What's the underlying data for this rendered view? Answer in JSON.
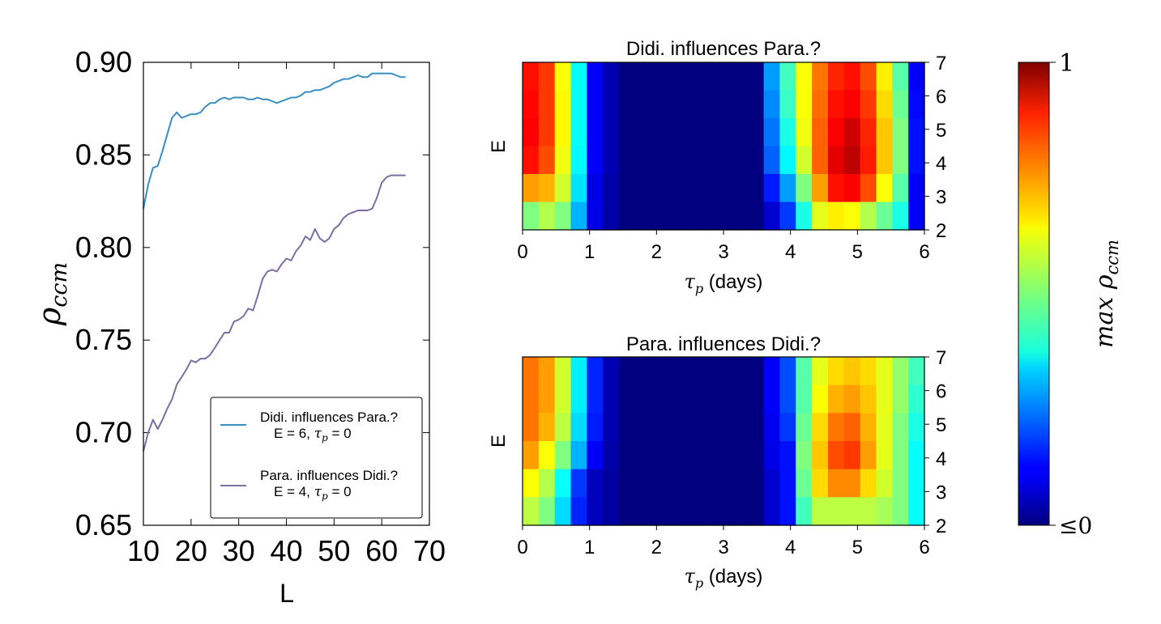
{
  "chart_data": [
    {
      "type": "line",
      "xlabel": "L",
      "ylabel_base": "ρ",
      "ylabel_sub": "ccm",
      "xlim": [
        10,
        70
      ],
      "ylim": [
        0.65,
        0.9
      ],
      "x_ticks": [
        "10",
        "20",
        "30",
        "40",
        "50",
        "60",
        "70"
      ],
      "y_ticks": [
        "0.90",
        "0.85",
        "0.80",
        "0.75",
        "0.70",
        "0.65"
      ],
      "grid": false,
      "legend_position": "lower-right",
      "series": [
        {
          "name": "Didi. influences Para.?",
          "sub_e": "E = 6, ",
          "sub_tau_base": "τ",
          "sub_tau_sub": "p",
          "sub_tau_rest": " = 0",
          "color": "#3b8fbf",
          "x": [
            10,
            11,
            12,
            13,
            14,
            15,
            16,
            17,
            18,
            19,
            20,
            21,
            22,
            23,
            24,
            25,
            26,
            27,
            28,
            29,
            30,
            31,
            32,
            33,
            34,
            35,
            36,
            37,
            38,
            39,
            40,
            41,
            42,
            43,
            44,
            45,
            46,
            47,
            48,
            49,
            50,
            51,
            52,
            53,
            54,
            55,
            56,
            57,
            58,
            59,
            60,
            61,
            62,
            63,
            64,
            65
          ],
          "values": [
            0.821,
            0.834,
            0.843,
            0.844,
            0.852,
            0.861,
            0.87,
            0.873,
            0.87,
            0.871,
            0.872,
            0.872,
            0.873,
            0.876,
            0.878,
            0.878,
            0.88,
            0.881,
            0.88,
            0.881,
            0.881,
            0.881,
            0.88,
            0.88,
            0.881,
            0.88,
            0.88,
            0.879,
            0.878,
            0.879,
            0.88,
            0.881,
            0.881,
            0.882,
            0.884,
            0.884,
            0.885,
            0.885,
            0.886,
            0.887,
            0.889,
            0.89,
            0.891,
            0.891,
            0.892,
            0.893,
            0.892,
            0.892,
            0.894,
            0.894,
            0.894,
            0.894,
            0.894,
            0.893,
            0.892,
            0.892
          ]
        },
        {
          "name": "Para. influences Didi.?",
          "sub_e": "E = 4, ",
          "sub_tau_base": "τ",
          "sub_tau_sub": "p",
          "sub_tau_rest": " = 0",
          "color": "#7b6ea5",
          "x": [
            10,
            11,
            12,
            13,
            14,
            15,
            16,
            17,
            18,
            19,
            20,
            21,
            22,
            23,
            24,
            25,
            26,
            27,
            28,
            29,
            30,
            31,
            32,
            33,
            34,
            35,
            36,
            37,
            38,
            39,
            40,
            41,
            42,
            43,
            44,
            45,
            46,
            47,
            48,
            49,
            50,
            51,
            52,
            53,
            54,
            55,
            56,
            57,
            58,
            59,
            60,
            61,
            62,
            63,
            64,
            65
          ],
          "values": [
            0.69,
            0.7,
            0.707,
            0.702,
            0.707,
            0.713,
            0.718,
            0.726,
            0.73,
            0.734,
            0.739,
            0.738,
            0.74,
            0.74,
            0.742,
            0.746,
            0.75,
            0.754,
            0.754,
            0.76,
            0.761,
            0.763,
            0.767,
            0.766,
            0.774,
            0.783,
            0.787,
            0.788,
            0.787,
            0.791,
            0.794,
            0.793,
            0.798,
            0.801,
            0.806,
            0.804,
            0.81,
            0.805,
            0.803,
            0.805,
            0.81,
            0.812,
            0.816,
            0.818,
            0.819,
            0.82,
            0.82,
            0.82,
            0.821,
            0.827,
            0.835,
            0.838,
            0.839,
            0.839,
            0.839,
            0.839
          ]
        }
      ]
    },
    {
      "type": "heatmap",
      "title": "Didi. influences Para.?",
      "xlabel_base": "τ",
      "xlabel_sub": "p",
      "xlabel_rest": " (days)",
      "ylabel": "E",
      "x_ticks": [
        "0",
        "1",
        "2",
        "3",
        "4",
        "5",
        "6"
      ],
      "y_ticks": [
        "7",
        "6",
        "5",
        "4",
        "3",
        "2"
      ],
      "xlim": [
        0,
        6
      ],
      "ylim": [
        2,
        7
      ],
      "x": [
        0,
        0.25,
        0.5,
        0.75,
        1,
        1.25,
        1.5,
        1.75,
        2,
        2.25,
        2.5,
        2.75,
        3,
        3.25,
        3.5,
        3.75,
        4,
        4.25,
        4.5,
        4.75,
        5,
        5.25,
        5.5,
        5.75,
        6
      ],
      "rows": [
        {
          "E": 7,
          "values": [
            0.86,
            0.82,
            0.62,
            0.38,
            0.12,
            0.05,
            0,
            0,
            0,
            0,
            0,
            0,
            0,
            0,
            0,
            0.28,
            0.44,
            0.62,
            0.76,
            0.84,
            0.86,
            0.8,
            0.64,
            0.46,
            0.12
          ]
        },
        {
          "E": 6,
          "values": [
            0.87,
            0.82,
            0.63,
            0.38,
            0.12,
            0.05,
            0,
            0,
            0,
            0,
            0,
            0,
            0,
            0,
            0,
            0.26,
            0.43,
            0.62,
            0.77,
            0.86,
            0.88,
            0.82,
            0.66,
            0.48,
            0.13
          ]
        },
        {
          "E": 5,
          "values": [
            0.88,
            0.82,
            0.63,
            0.38,
            0.12,
            0.05,
            0,
            0,
            0,
            0,
            0,
            0,
            0,
            0,
            0,
            0.24,
            0.4,
            0.61,
            0.78,
            0.88,
            0.92,
            0.84,
            0.68,
            0.5,
            0.14
          ]
        },
        {
          "E": 4,
          "values": [
            0.86,
            0.8,
            0.61,
            0.37,
            0.12,
            0.05,
            0,
            0,
            0,
            0,
            0,
            0,
            0,
            0,
            0,
            0.22,
            0.37,
            0.58,
            0.78,
            0.9,
            0.94,
            0.85,
            0.68,
            0.5,
            0.14
          ]
        },
        {
          "E": 3,
          "values": [
            0.72,
            0.7,
            0.58,
            0.35,
            0.1,
            0.04,
            0,
            0,
            0,
            0,
            0,
            0,
            0,
            0,
            0,
            0.15,
            0.28,
            0.5,
            0.72,
            0.86,
            0.88,
            0.8,
            0.62,
            0.46,
            0.12
          ]
        },
        {
          "E": 2,
          "values": [
            0.5,
            0.55,
            0.5,
            0.3,
            0.1,
            0.04,
            0,
            0,
            0,
            0,
            0,
            0,
            0,
            0,
            0,
            0.08,
            0.18,
            0.4,
            0.6,
            0.64,
            0.62,
            0.55,
            0.48,
            0.4,
            0.12
          ]
        }
      ]
    },
    {
      "type": "heatmap",
      "title": "Para. influences Didi.?",
      "xlabel_base": "τ",
      "xlabel_sub": "p",
      "xlabel_rest": " (days)",
      "ylabel": "E",
      "x_ticks": [
        "0",
        "1",
        "2",
        "3",
        "4",
        "5",
        "6"
      ],
      "y_ticks": [
        "7",
        "6",
        "5",
        "4",
        "3",
        "2"
      ],
      "xlim": [
        0,
        6
      ],
      "ylim": [
        2,
        7
      ],
      "x": [
        0,
        0.25,
        0.5,
        0.75,
        1,
        1.25,
        1.5,
        1.75,
        2,
        2.25,
        2.5,
        2.75,
        3,
        3.25,
        3.5,
        3.75,
        4,
        4.25,
        4.5,
        4.75,
        5,
        5.25,
        5.5,
        5.75,
        6
      ],
      "rows": [
        {
          "E": 7,
          "values": [
            0.76,
            0.72,
            0.58,
            0.36,
            0.16,
            0.05,
            0,
            0,
            0,
            0,
            0,
            0,
            0,
            0,
            0,
            0.12,
            0.2,
            0.46,
            0.6,
            0.66,
            0.68,
            0.66,
            0.6,
            0.52,
            0.44
          ]
        },
        {
          "E": 6,
          "values": [
            0.76,
            0.72,
            0.58,
            0.36,
            0.16,
            0.05,
            0,
            0,
            0,
            0,
            0,
            0,
            0,
            0,
            0,
            0.12,
            0.2,
            0.46,
            0.62,
            0.7,
            0.72,
            0.68,
            0.6,
            0.52,
            0.42
          ]
        },
        {
          "E": 5,
          "values": [
            0.76,
            0.7,
            0.56,
            0.34,
            0.15,
            0.05,
            0,
            0,
            0,
            0,
            0,
            0,
            0,
            0,
            0,
            0.11,
            0.18,
            0.48,
            0.66,
            0.76,
            0.78,
            0.7,
            0.6,
            0.5,
            0.4
          ]
        },
        {
          "E": 4,
          "values": [
            0.72,
            0.62,
            0.5,
            0.3,
            0.12,
            0.04,
            0,
            0,
            0,
            0,
            0,
            0,
            0,
            0,
            0,
            0.1,
            0.14,
            0.5,
            0.68,
            0.8,
            0.82,
            0.72,
            0.6,
            0.5,
            0.38
          ]
        },
        {
          "E": 3,
          "values": [
            0.62,
            0.55,
            0.38,
            0.18,
            0.06,
            0.03,
            0,
            0,
            0,
            0,
            0,
            0,
            0,
            0,
            0,
            0.08,
            0.14,
            0.48,
            0.66,
            0.74,
            0.74,
            0.66,
            0.58,
            0.5,
            0.38
          ]
        },
        {
          "E": 2,
          "values": [
            0.56,
            0.5,
            0.34,
            0.16,
            0.06,
            0.03,
            0,
            0,
            0,
            0,
            0,
            0,
            0,
            0,
            0,
            0.08,
            0.14,
            0.44,
            0.56,
            0.56,
            0.56,
            0.56,
            0.54,
            0.5,
            0.38
          ]
        }
      ]
    },
    {
      "type": "colorbar",
      "colormap": "jet",
      "top_label": "1",
      "bottom_label": "≤0",
      "label_base": "max ρ",
      "label_sub": "ccm"
    }
  ]
}
